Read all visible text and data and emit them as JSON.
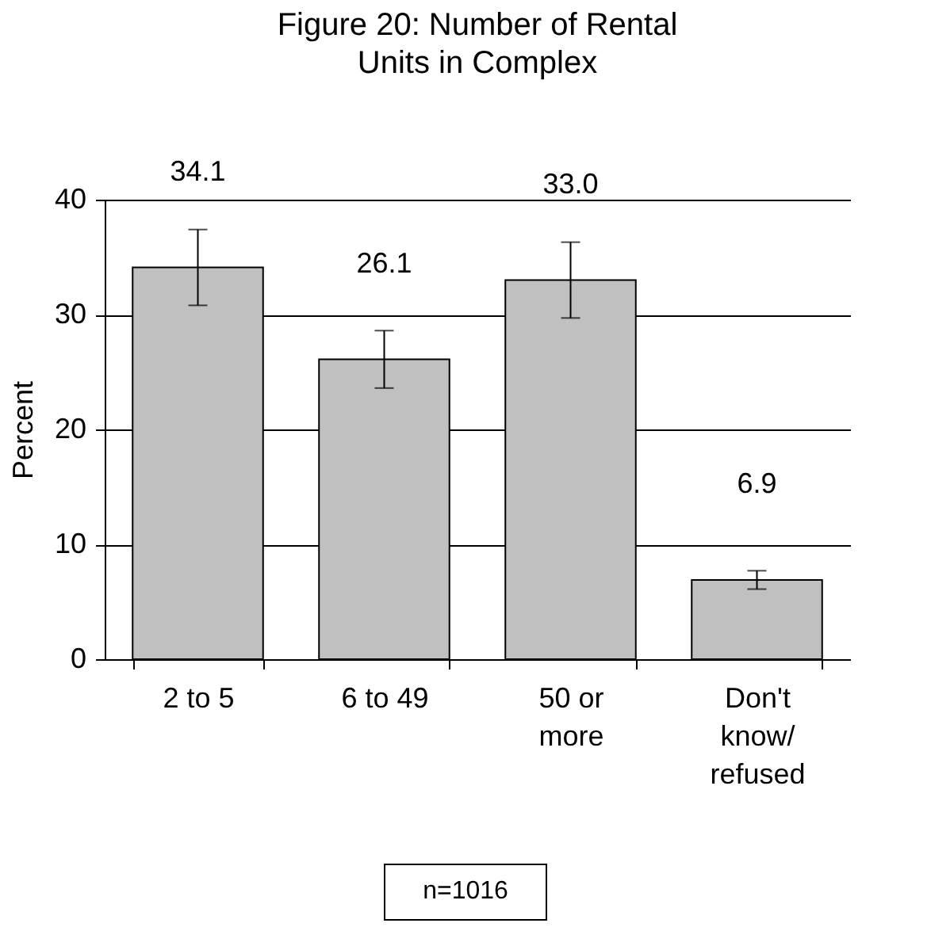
{
  "chart_data": {
    "type": "bar",
    "title": "Figure 20: Number of Rental Units in Complex",
    "ylabel": "Percent",
    "categories": [
      "2 to 5",
      "6 to 49",
      "50 or more",
      "Don't know/refused"
    ],
    "values": [
      34.1,
      26.1,
      33.0,
      6.9
    ],
    "value_labels": [
      "34.1",
      "26.1",
      "33.0",
      "6.9"
    ],
    "errors": [
      3.3,
      2.5,
      3.3,
      0.8
    ],
    "color": "#c0c0c0",
    "ylim": [
      0,
      40
    ],
    "yticks": [
      0,
      10,
      20,
      30,
      40
    ],
    "grid": "y",
    "annotations": [
      "n=1016"
    ]
  }
}
